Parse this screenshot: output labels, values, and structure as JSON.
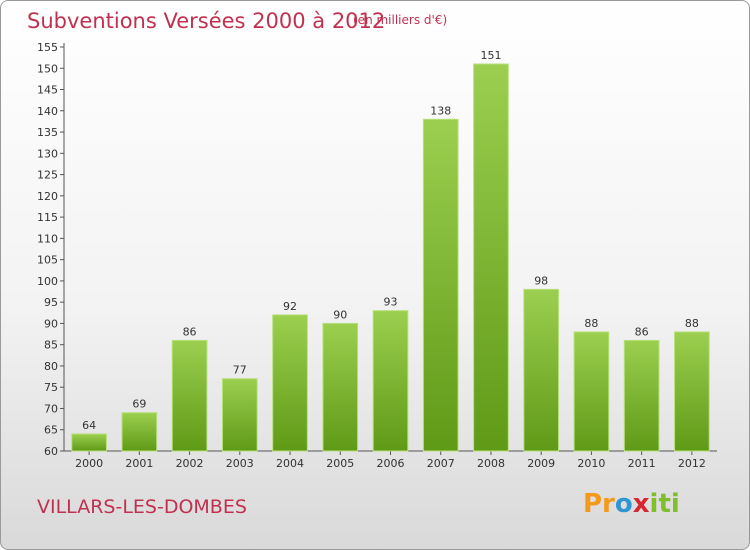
{
  "header": {
    "title": "Subventions Versées 2000 à 2012",
    "unit": "(en milliers d'€)"
  },
  "footer": {
    "commune": "VILLARS-LES-DOMBES",
    "logo": "Proxiti"
  },
  "colors": {
    "bar_top": "#9ccf4f",
    "bar_bottom": "#5f9a17",
    "title": "#c1314f"
  },
  "chart_data": {
    "type": "bar",
    "title": "Subventions Versées 2000 à 2012",
    "subtitle": "(en milliers d'€)",
    "xlabel": "",
    "ylabel": "",
    "categories": [
      "2000",
      "2001",
      "2002",
      "2003",
      "2004",
      "2005",
      "2006",
      "2007",
      "2008",
      "2009",
      "2010",
      "2011",
      "2012"
    ],
    "values": [
      64,
      69,
      86,
      77,
      92,
      90,
      93,
      138,
      151,
      98,
      88,
      86,
      88
    ],
    "ylim": [
      60,
      155
    ],
    "yticks": [
      60,
      65,
      70,
      75,
      80,
      85,
      90,
      95,
      100,
      105,
      110,
      115,
      120,
      125,
      130,
      135,
      140,
      145,
      150,
      155
    ],
    "grid": false,
    "data_labels": true,
    "legend": "none"
  }
}
